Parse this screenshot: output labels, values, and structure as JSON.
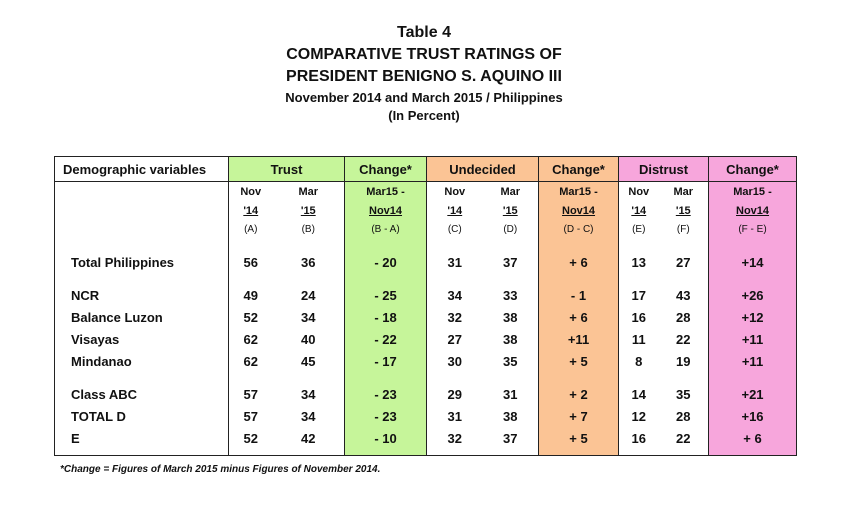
{
  "title": {
    "table_no": "Table 4",
    "line1": "COMPARATIVE TRUST RATINGS OF",
    "line2": "PRESIDENT BENIGNO S. AQUINO III",
    "line3": "November 2014 and March 2015 / Philippines",
    "line4": "(In Percent)"
  },
  "headers": {
    "demographic": "Demographic variables",
    "trust": "Trust",
    "change1": "Change*",
    "undecided": "Undecided",
    "change2": "Change*",
    "distrust": "Distrust",
    "change3": "Change*"
  },
  "subheaders": {
    "row1": [
      "Nov",
      "Mar",
      "Mar15 -",
      "Nov",
      "Mar",
      "Mar15 -",
      "Nov",
      "Mar",
      "Mar15 -"
    ],
    "row2": [
      "'14",
      "'15",
      "Nov14",
      "'14",
      "'15",
      "Nov14",
      "'14",
      "'15",
      "Nov14"
    ],
    "row3": [
      "(A)",
      "(B)",
      "(B - A)",
      "(C)",
      "(D)",
      "(D - C)",
      "(E)",
      "(F)",
      "(F - E)"
    ]
  },
  "rows": [
    {
      "label": "Total Philippines",
      "values": [
        "56",
        "36",
        "- 20",
        "31",
        "37",
        "+ 6",
        "13",
        "27",
        "+14"
      ]
    },
    {
      "label": "NCR",
      "values": [
        "49",
        "24",
        "- 25",
        "34",
        "33",
        "- 1",
        "17",
        "43",
        "+26"
      ]
    },
    {
      "label": "Balance Luzon",
      "values": [
        "52",
        "34",
        "- 18",
        "32",
        "38",
        "+ 6",
        "16",
        "28",
        "+12"
      ]
    },
    {
      "label": "Visayas",
      "values": [
        "62",
        "40",
        "- 22",
        "27",
        "38",
        "+11",
        "11",
        "22",
        "+11"
      ]
    },
    {
      "label": "Mindanao",
      "values": [
        "62",
        "45",
        "- 17",
        "30",
        "35",
        "+ 5",
        "8",
        "19",
        "+11"
      ]
    },
    {
      "label": "Class ABC",
      "values": [
        "57",
        "34",
        "- 23",
        "29",
        "31",
        "+ 2",
        "14",
        "35",
        "+21"
      ]
    },
    {
      "label": "TOTAL D",
      "values": [
        "57",
        "34",
        "- 23",
        "31",
        "38",
        "+ 7",
        "12",
        "28",
        "+16"
      ]
    },
    {
      "label": "E",
      "values": [
        "52",
        "42",
        "- 10",
        "32",
        "37",
        "+ 5",
        "16",
        "22",
        "+ 6"
      ]
    }
  ],
  "footnote": "*Change = Figures of March 2015 minus Figures of November 2014.",
  "colors": {
    "trust_change": "#c6f59a",
    "undecided": "#fbc495",
    "distrust": "#f7a6dc"
  }
}
